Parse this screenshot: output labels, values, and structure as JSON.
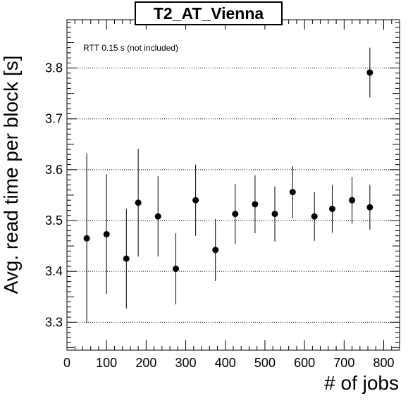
{
  "chart_data": {
    "type": "scatter",
    "title": "T2_AT_Vienna",
    "annotation": "RTT 0.15 s (not included)",
    "xlabel": "# of jobs",
    "ylabel": "Avg. read time per block [s]",
    "xlim": [
      0,
      840
    ],
    "ylim": [
      3.245,
      3.895
    ],
    "xticks": [
      0,
      100,
      200,
      300,
      400,
      500,
      600,
      700,
      800
    ],
    "yticks": [
      3.3,
      3.4,
      3.5,
      3.6,
      3.7,
      3.8
    ],
    "grid": "horizontal dotted",
    "points": [
      {
        "x": 50,
        "y": 3.465,
        "err": 0.167
      },
      {
        "x": 100,
        "y": 3.473,
        "err": 0.118
      },
      {
        "x": 150,
        "y": 3.425,
        "err": 0.098
      },
      {
        "x": 180,
        "y": 3.535,
        "err": 0.106
      },
      {
        "x": 230,
        "y": 3.508,
        "err": 0.079
      },
      {
        "x": 275,
        "y": 3.405,
        "err": 0.07
      },
      {
        "x": 325,
        "y": 3.54,
        "err": 0.07
      },
      {
        "x": 375,
        "y": 3.442,
        "err": 0.061
      },
      {
        "x": 425,
        "y": 3.513,
        "err": 0.059
      },
      {
        "x": 475,
        "y": 3.532,
        "err": 0.057
      },
      {
        "x": 525,
        "y": 3.513,
        "err": 0.054
      },
      {
        "x": 570,
        "y": 3.556,
        "err": 0.051
      },
      {
        "x": 625,
        "y": 3.508,
        "err": 0.048
      },
      {
        "x": 670,
        "y": 3.523,
        "err": 0.047
      },
      {
        "x": 720,
        "y": 3.54,
        "err": 0.046
      },
      {
        "x": 765,
        "y": 3.526,
        "err": 0.044
      },
      {
        "x": 765,
        "y": 3.791,
        "err": 0.049
      }
    ]
  }
}
